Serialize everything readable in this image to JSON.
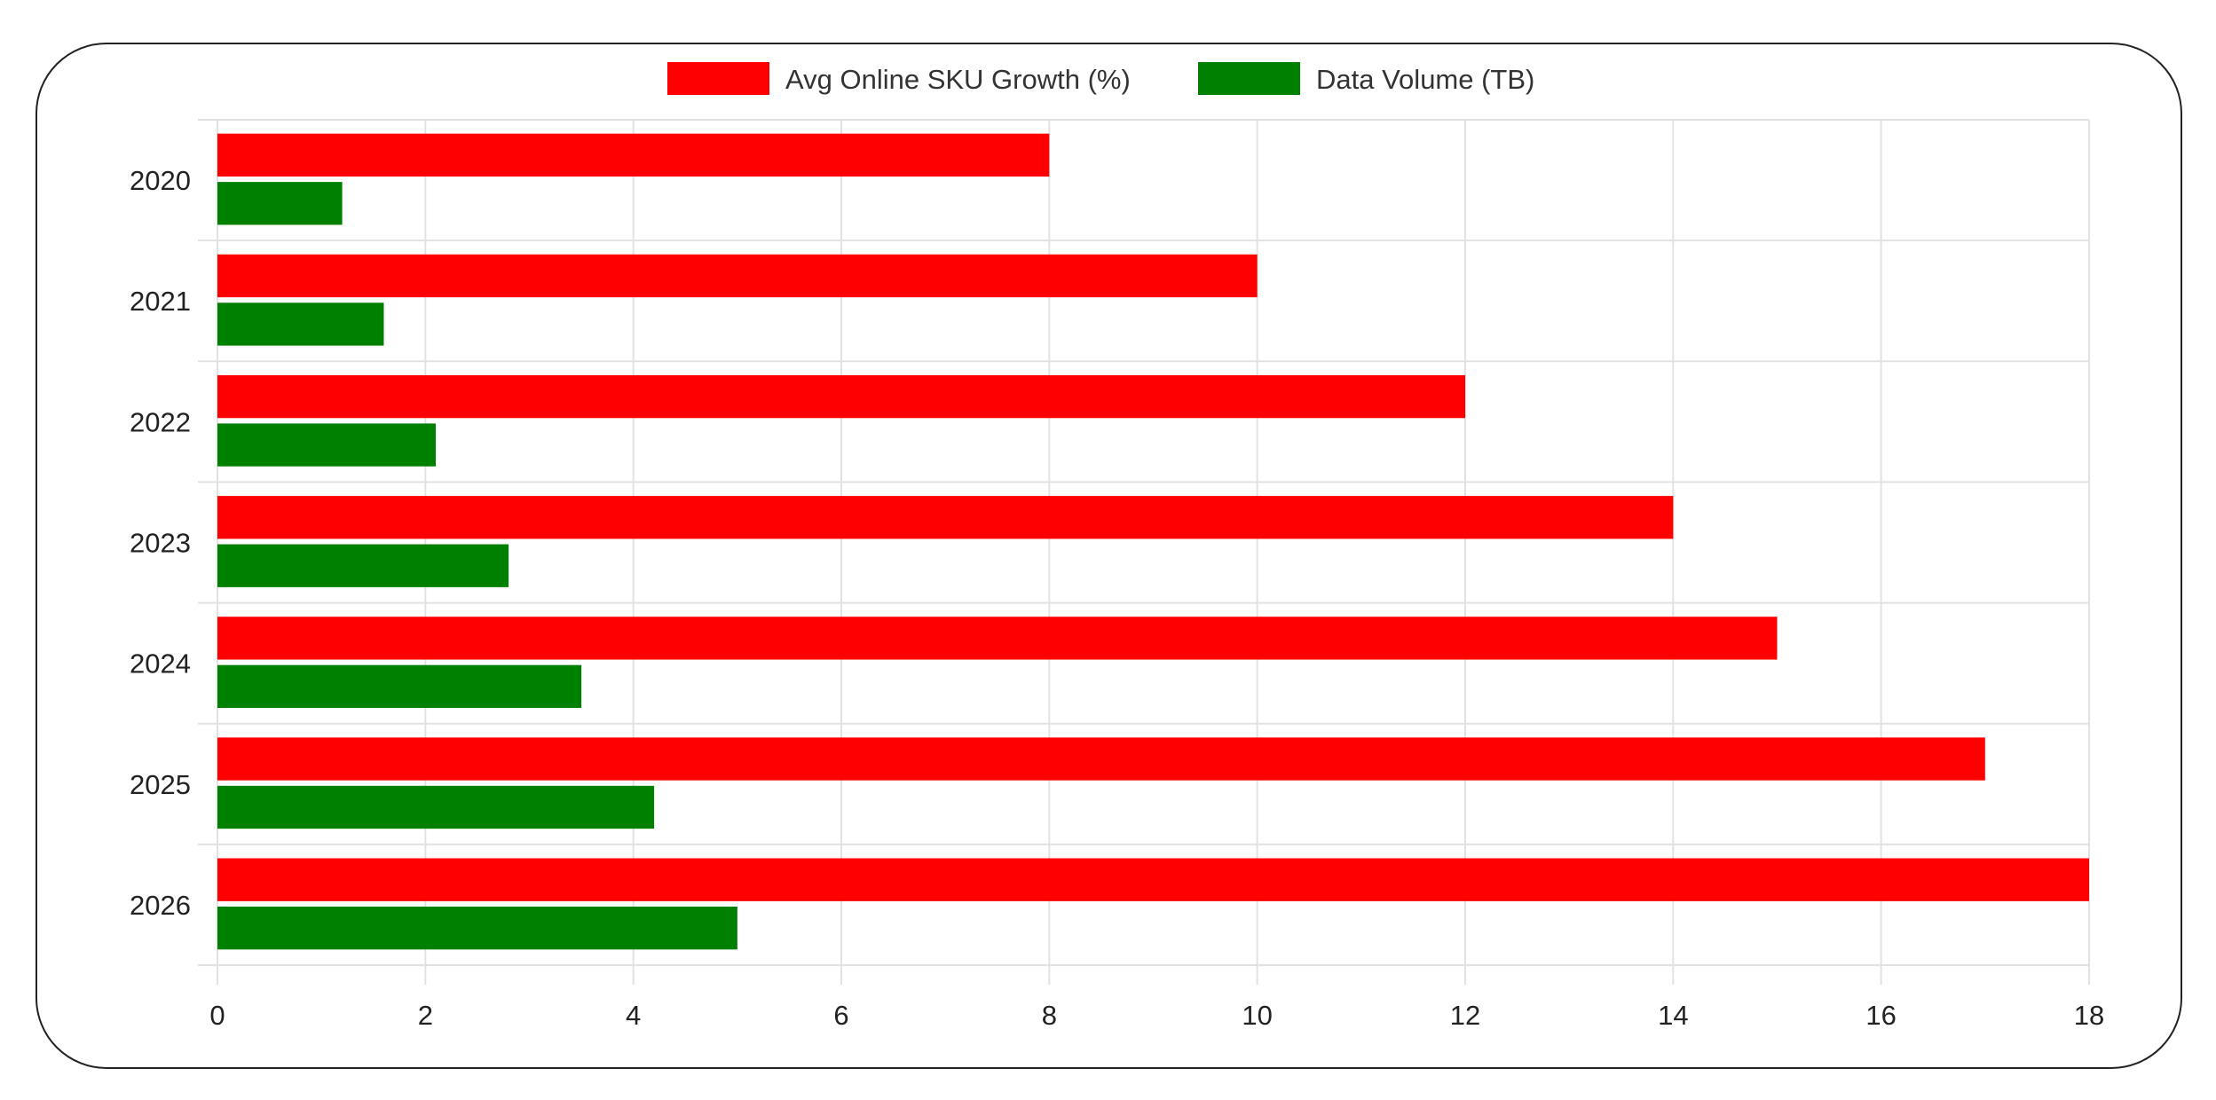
{
  "chart_data": {
    "type": "bar",
    "orientation": "horizontal",
    "categories": [
      "2020",
      "2021",
      "2022",
      "2023",
      "2024",
      "2025",
      "2026"
    ],
    "series": [
      {
        "name": "Avg Online SKU Growth (%)",
        "color": "#ff0000",
        "values": [
          8,
          10,
          12,
          14,
          15,
          17,
          18
        ]
      },
      {
        "name": "Data Volume (TB)",
        "color": "#008000",
        "values": [
          1.2,
          1.6,
          2.1,
          2.8,
          3.5,
          4.2,
          5
        ]
      }
    ],
    "xlim": [
      0,
      18
    ],
    "xticks": [
      0,
      2,
      4,
      6,
      8,
      10,
      12,
      14,
      16,
      18
    ],
    "grid": true,
    "legend": "top",
    "title": "",
    "xlabel": "",
    "ylabel": ""
  }
}
